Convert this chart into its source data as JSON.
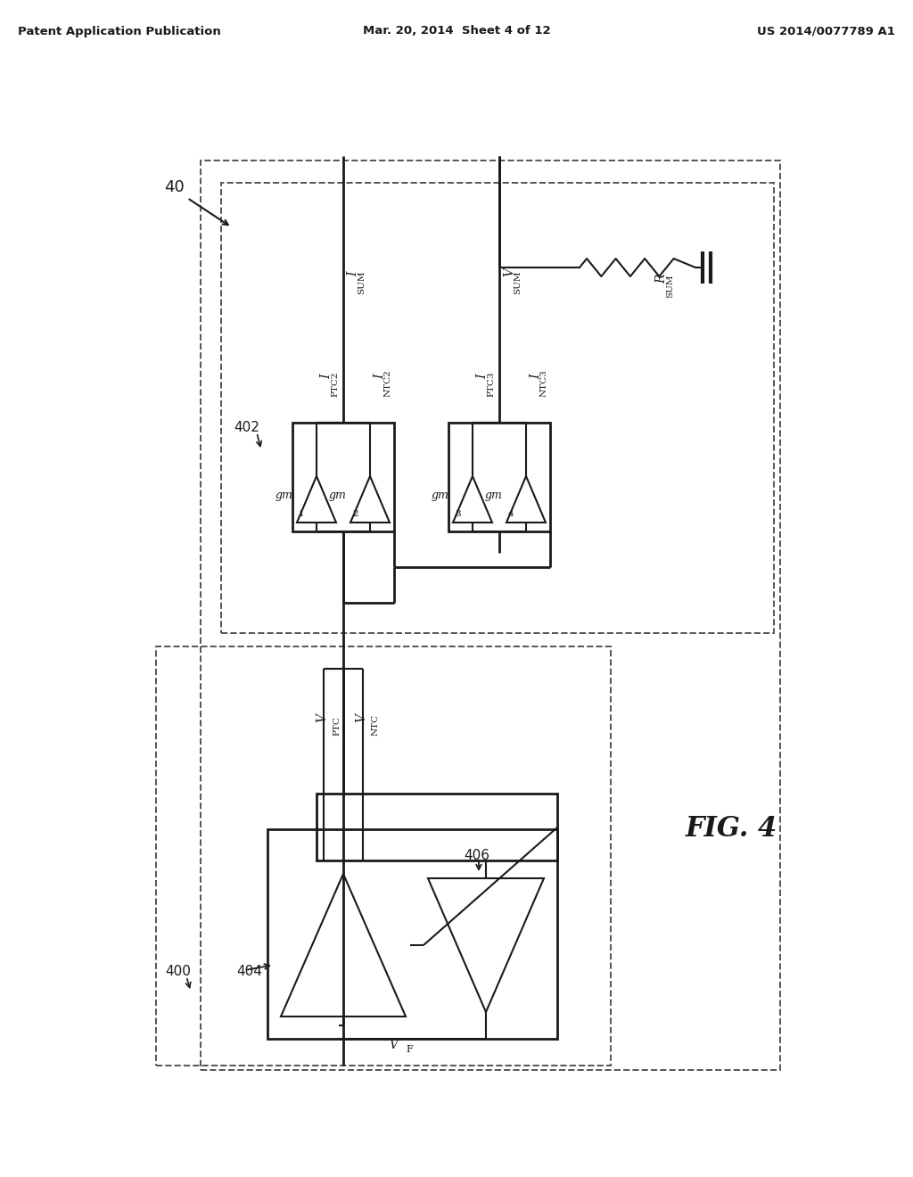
{
  "bg_color": "#ffffff",
  "line_color": "#1a1a1a",
  "dashed_color": "#555555",
  "header_left": "Patent Application Publication",
  "header_mid": "Mar. 20, 2014  Sheet 4 of 12",
  "header_right": "US 2014/0077789 A1",
  "fig_label": "FIG. 4",
  "label_40": "40",
  "label_400": "400",
  "label_402": "402",
  "label_404": "404",
  "label_406": "406",
  "lw_main": 2.0,
  "lw_thin": 1.5,
  "lw_dash": 1.3
}
